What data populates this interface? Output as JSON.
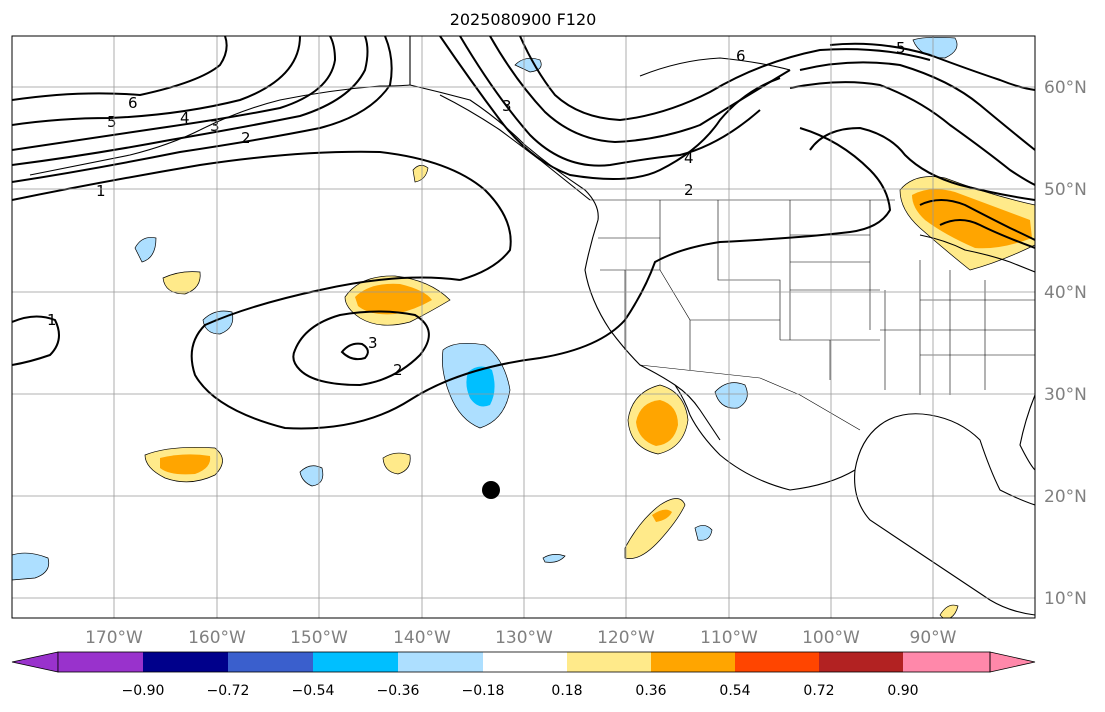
{
  "title": "2025080900 F120",
  "lon_labels": [
    "170°W",
    "160°W",
    "150°W",
    "140°W",
    "130°W",
    "120°W",
    "110°W",
    "100°W",
    "90°W"
  ],
  "lat_labels": [
    "60°N",
    "50°N",
    "40°N",
    "30°N",
    "20°N",
    "10°N"
  ],
  "colorbar": {
    "ticks": [
      "−0.90",
      "−0.72",
      "−0.54",
      "−0.36",
      "−0.18",
      "0.18",
      "0.36",
      "0.54",
      "0.72",
      "0.90"
    ],
    "colors": [
      "#9932CC",
      "#00008B",
      "#3A5FCD",
      "#00BFFF",
      "#ADDFFF",
      "#FFFFFF",
      "#FFEA8A",
      "#FFA500",
      "#FF4500",
      "#B22222",
      "#FF88AA"
    ]
  },
  "contour_labels": [
    "6",
    "5",
    "4",
    "3",
    "2",
    "1",
    "3",
    "2",
    "1",
    "3",
    "6",
    "4",
    "2",
    "5"
  ],
  "marker": {
    "lon": -133.5,
    "lat": 20.5
  }
}
